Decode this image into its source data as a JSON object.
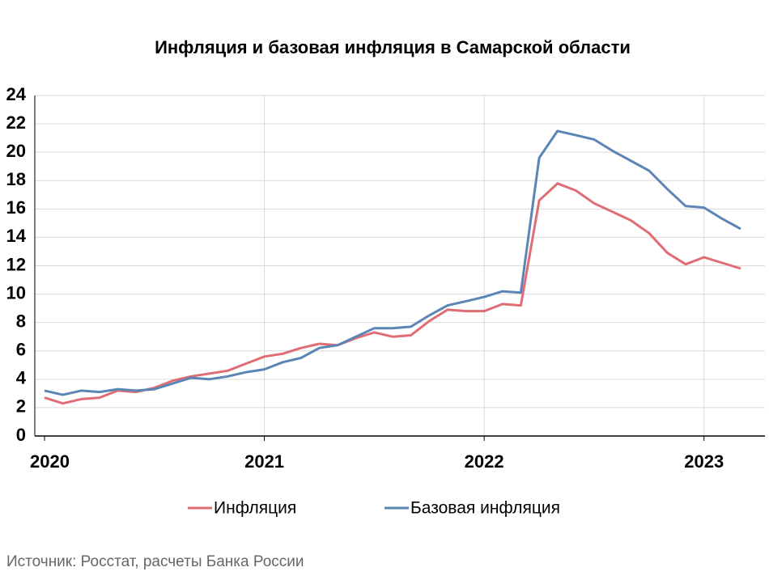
{
  "chart_data": {
    "type": "line",
    "title": "Инфляция и базовая инфляция в Самарской области",
    "categories": [
      "2020",
      null,
      null,
      null,
      null,
      null,
      null,
      null,
      null,
      null,
      null,
      null,
      "2021",
      null,
      null,
      null,
      null,
      null,
      null,
      null,
      null,
      null,
      null,
      null,
      "2022",
      null,
      null,
      null,
      null,
      null,
      null,
      null,
      null,
      null,
      null,
      null,
      "2023",
      null,
      null
    ],
    "series": [
      {
        "name": "Инфляция",
        "color": "#e06c75",
        "values": [
          2.7,
          2.3,
          2.6,
          2.7,
          3.2,
          3.1,
          3.4,
          3.9,
          4.2,
          4.4,
          4.6,
          5.1,
          5.6,
          5.8,
          6.2,
          6.5,
          6.4,
          6.9,
          7.3,
          7.0,
          7.1,
          8.1,
          8.9,
          8.8,
          8.8,
          9.3,
          9.2,
          16.6,
          17.8,
          17.3,
          16.4,
          15.8,
          15.2,
          14.3,
          12.9,
          12.1,
          12.6,
          12.2,
          11.8
        ]
      },
      {
        "name": "Базовая инфляция",
        "color": "#5b85b5",
        "values": [
          3.2,
          2.9,
          3.2,
          3.1,
          3.3,
          3.2,
          3.3,
          3.7,
          4.1,
          4.0,
          4.2,
          4.5,
          4.7,
          5.2,
          5.5,
          6.2,
          6.4,
          7.0,
          7.6,
          7.6,
          7.7,
          8.5,
          9.2,
          9.5,
          9.8,
          10.2,
          10.1,
          19.6,
          21.5,
          21.2,
          20.9,
          20.1,
          19.4,
          18.7,
          17.4,
          16.2,
          16.1,
          15.3,
          14.6
        ]
      }
    ],
    "ylim": [
      0,
      24
    ],
    "yticks": [
      0,
      2,
      4,
      6,
      8,
      10,
      12,
      14,
      16,
      18,
      20,
      22,
      24
    ],
    "grid": true,
    "legend": "bottom",
    "source": "Источник: Росстат, расчеты Банка России"
  }
}
